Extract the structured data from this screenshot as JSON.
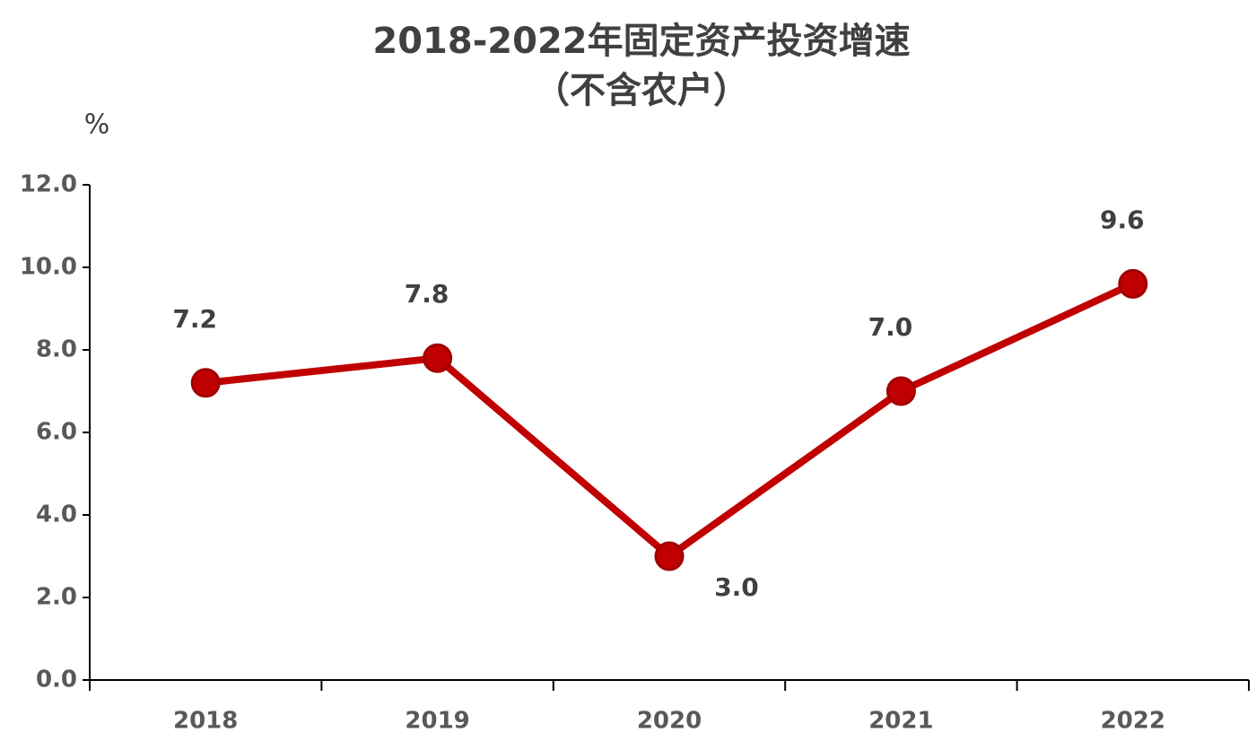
{
  "chart_data": {
    "type": "line",
    "title": "2018-2022年固定资产投资增速",
    "subtitle": "（不含农户）",
    "y_label": "%",
    "categories": [
      "2018",
      "2019",
      "2020",
      "2021",
      "2022"
    ],
    "series": [
      {
        "name": "固定资产投资增速",
        "color": "#c00000",
        "values": [
          7.2,
          7.8,
          3.0,
          7.0,
          9.6
        ],
        "value_labels": [
          "7.2",
          "7.8",
          "3.0",
          "7.0",
          "9.6"
        ]
      }
    ],
    "ylim": [
      0,
      12
    ],
    "yticks": [
      {
        "value": 0,
        "label": "0.0"
      },
      {
        "value": 2,
        "label": "2.0"
      },
      {
        "value": 4,
        "label": "4.0"
      },
      {
        "value": 6,
        "label": "6.0"
      },
      {
        "value": 8,
        "label": "8.0"
      },
      {
        "value": 10,
        "label": "10.0"
      },
      {
        "value": 12,
        "label": "12.0"
      }
    ],
    "grid": false
  }
}
